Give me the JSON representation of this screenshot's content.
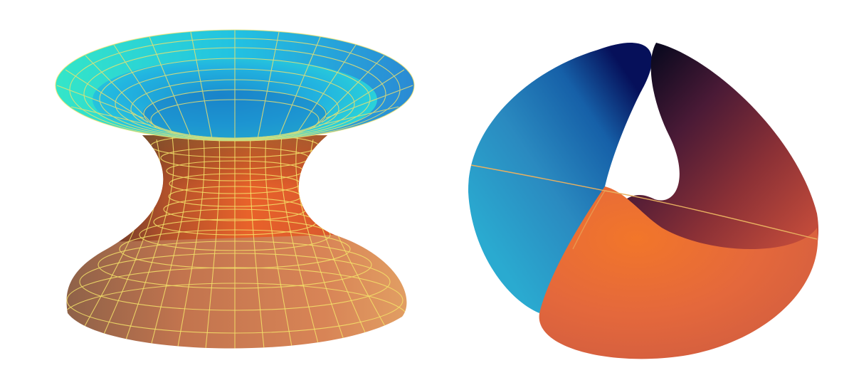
{
  "figure": {
    "panels": [
      {
        "id": "left",
        "shape": "hyperboloid-surface",
        "colors": {
          "top_bowl_light": "#2fe0d8",
          "top_bowl_mid": "#20b8e0",
          "top_bowl_dark": "#1e7ec8",
          "waist": "#e0562a",
          "bottom_flare": "#c97a52",
          "bottom_flare_light": "#e09a63",
          "grid_lines": "#f5e36a"
        }
      },
      {
        "id": "right",
        "shape": "twisted-surface",
        "colors": {
          "blue_light": "#2aa2c8",
          "blue_dark": "#0a1a6a",
          "maroon_dark": "#1a0a28",
          "maroon": "#7a2838",
          "orange": "#f06a2a",
          "orange_light": "#e8784a",
          "seam_line": "#e8b060"
        }
      }
    ]
  }
}
